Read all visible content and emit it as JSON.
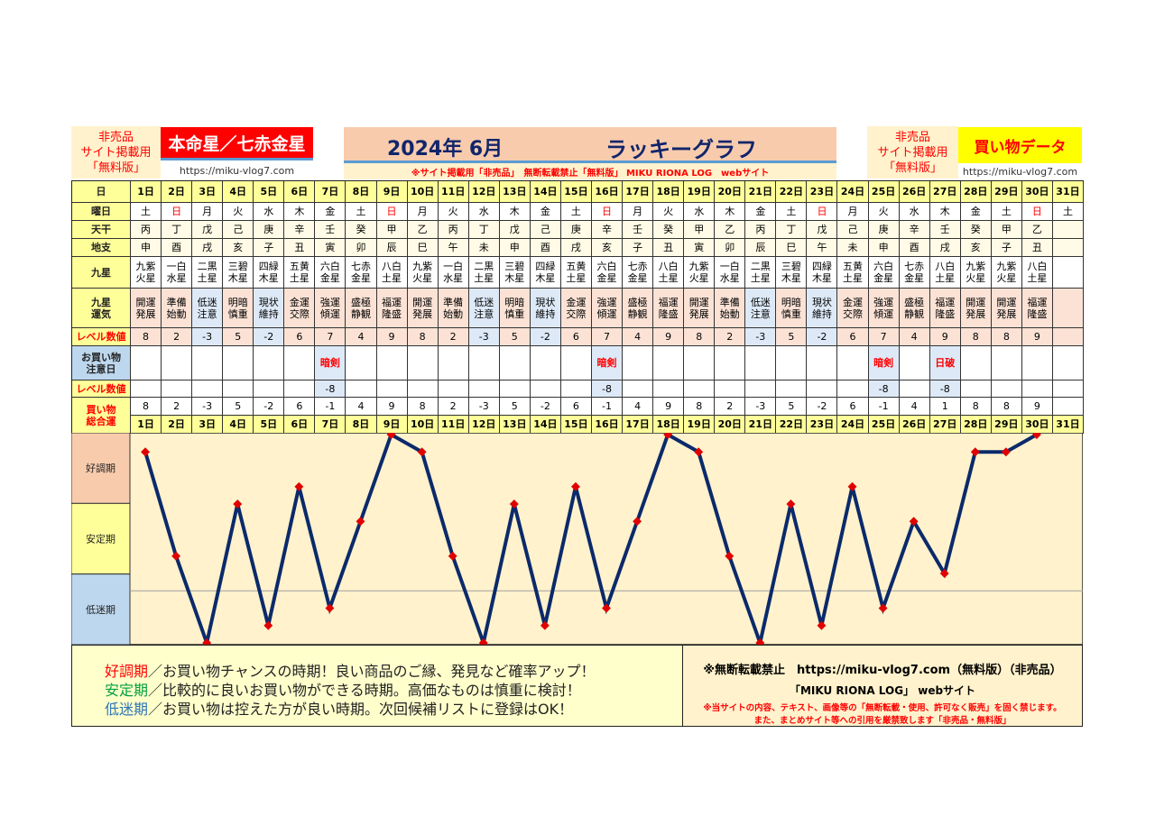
{
  "header": {
    "nonsale_left": [
      "非売品",
      "サイト掲載用",
      "「無料版」"
    ],
    "honmei_title": "本命星／七赤金星",
    "url_left": "https://miku-vlog7.com",
    "month_title": "2024年 6月",
    "graph_title": "ラッキーグラフ",
    "notice": "※サイト掲載用「非売品」　無断転載禁止「無料版」 MIKU RIONA LOG　webサイト",
    "nonsale_right": [
      "非売品",
      "サイト掲載用",
      "「無料版」"
    ],
    "data_title": "買い物データ",
    "url_right": "https://miku-vlog7.com"
  },
  "row_labels": {
    "day": "日",
    "weekday": "曜日",
    "tenkan": "天干",
    "chishi": "地支",
    "kyusei": "九星",
    "unki": "九星\n運気",
    "level": "レベル数値",
    "caution": "お買い物\n注意日",
    "caution_level": "レベル数値",
    "total": "買い物\n総合運"
  },
  "days": [
    "1日",
    "2日",
    "3日",
    "4日",
    "5日",
    "6日",
    "7日",
    "8日",
    "9日",
    "10日",
    "11日",
    "12日",
    "13日",
    "14日",
    "15日",
    "16日",
    "17日",
    "18日",
    "19日",
    "20日",
    "21日",
    "22日",
    "23日",
    "24日",
    "25日",
    "26日",
    "27日",
    "28日",
    "29日",
    "30日",
    "31日"
  ],
  "weekdays": [
    "土",
    "日",
    "月",
    "火",
    "水",
    "木",
    "金",
    "土",
    "日",
    "月",
    "火",
    "水",
    "木",
    "金",
    "土",
    "日",
    "月",
    "火",
    "水",
    "木",
    "金",
    "土",
    "日",
    "月",
    "火",
    "水",
    "木",
    "金",
    "土",
    "日",
    "土"
  ],
  "tenkan": [
    "丙",
    "丁",
    "戊",
    "己",
    "庚",
    "辛",
    "壬",
    "癸",
    "甲",
    "乙",
    "丙",
    "丁",
    "戊",
    "己",
    "庚",
    "辛",
    "壬",
    "癸",
    "甲",
    "乙",
    "丙",
    "丁",
    "戊",
    "己",
    "庚",
    "辛",
    "壬",
    "癸",
    "甲",
    "乙",
    ""
  ],
  "chishi": [
    "申",
    "酉",
    "戌",
    "亥",
    "子",
    "丑",
    "寅",
    "卯",
    "辰",
    "巳",
    "午",
    "未",
    "申",
    "酉",
    "戌",
    "亥",
    "子",
    "丑",
    "寅",
    "卯",
    "辰",
    "巳",
    "午",
    "未",
    "申",
    "酉",
    "戌",
    "亥",
    "子",
    "丑",
    ""
  ],
  "kyusei": [
    "九紫\n火星",
    "一白\n水星",
    "二黒\n土星",
    "三碧\n木星",
    "四緑\n木星",
    "五黄\n土星",
    "六白\n金星",
    "七赤\n金星",
    "八白\n土星",
    "九紫\n火星",
    "一白\n水星",
    "二黒\n土星",
    "三碧\n木星",
    "四緑\n木星",
    "五黄\n土星",
    "六白\n金星",
    "七赤\n金星",
    "八白\n土星",
    "九紫\n火星",
    "一白\n水星",
    "二黒\n土星",
    "三碧\n木星",
    "四緑\n木星",
    "五黄\n土星",
    "六白\n金星",
    "七赤\n金星",
    "八白\n土星",
    "九紫\n火星",
    "九紫\n火星",
    "八白\n土星",
    ""
  ],
  "unki": [
    "開運\n発展",
    "準備\n始動",
    "低迷\n注意",
    "明暗\n慎重",
    "現状\n維持",
    "金運\n交際",
    "強運\n傾運",
    "盛極\n静観",
    "福運\n隆盛",
    "開運\n発展",
    "準備\n始動",
    "低迷\n注意",
    "明暗\n慎重",
    "現状\n維持",
    "金運\n交際",
    "強運\n傾運",
    "盛極\n静観",
    "福運\n隆盛",
    "開運\n発展",
    "準備\n始動",
    "低迷\n注意",
    "明暗\n慎重",
    "現状\n維持",
    "金運\n交際",
    "強運\n傾運",
    "盛極\n静観",
    "福運\n隆盛",
    "開運\n発展",
    "開運\n発展",
    "福運\n隆盛",
    ""
  ],
  "levels": [
    "8",
    "2",
    "-3",
    "5",
    "-2",
    "6",
    "7",
    "4",
    "9",
    "8",
    "2",
    "-3",
    "5",
    "-2",
    "6",
    "7",
    "4",
    "9",
    "8",
    "2",
    "-3",
    "5",
    "-2",
    "6",
    "7",
    "4",
    "9",
    "8",
    "8",
    "9",
    ""
  ],
  "caution": [
    "",
    "",
    "",
    "",
    "",
    "",
    "暗剣",
    "",
    "",
    "",
    "",
    "",
    "",
    "",
    "",
    "暗剣",
    "",
    "",
    "",
    "",
    "",
    "",
    "",
    "",
    "暗剣",
    "",
    "日破",
    "",
    "",
    "",
    ""
  ],
  "caution_levels": [
    "",
    "",
    "",
    "",
    "",
    "",
    "-8",
    "",
    "",
    "",
    "",
    "",
    "",
    "",
    "",
    "-8",
    "",
    "",
    "",
    "",
    "",
    "",
    "",
    "",
    "-8",
    "",
    "-8",
    "",
    "",
    "",
    ""
  ],
  "totals": [
    "8",
    "2",
    "-3",
    "5",
    "-2",
    "6",
    "-1",
    "4",
    "9",
    "8",
    "2",
    "-3",
    "5",
    "-2",
    "6",
    "-1",
    "4",
    "9",
    "8",
    "2",
    "-3",
    "5",
    "-2",
    "6",
    "-1",
    "4",
    "1",
    "8",
    "8",
    "9",
    ""
  ],
  "colors": {
    "line": "#0b2a6b",
    "marker": "#e00000",
    "good": "#f8cbad",
    "stable": "#ffff99",
    "low": "#bdd7ee",
    "plot_bg": "#fff2cc",
    "sunday": "#ff0000"
  },
  "chart_data": {
    "type": "line",
    "x": [
      "1日",
      "2日",
      "3日",
      "4日",
      "5日",
      "6日",
      "7日",
      "8日",
      "9日",
      "10日",
      "11日",
      "12日",
      "13日",
      "14日",
      "15日",
      "16日",
      "17日",
      "18日",
      "19日",
      "20日",
      "21日",
      "22日",
      "23日",
      "24日",
      "25日",
      "26日",
      "27日",
      "28日",
      "29日",
      "30日"
    ],
    "values": [
      8,
      2,
      -3,
      5,
      -2,
      6,
      -1,
      4,
      9,
      8,
      2,
      -3,
      5,
      -2,
      6,
      -1,
      4,
      9,
      8,
      2,
      -3,
      5,
      -2,
      6,
      -1,
      4,
      1,
      8,
      8,
      9
    ],
    "ylim": [
      -3,
      9
    ],
    "zero_line": true,
    "bands": [
      "好調期",
      "安定期",
      "低迷期"
    ]
  },
  "legend": {
    "good_term": "好調期",
    "good_text": "／お買い物チャンスの時期！良い商品のご縁、発見など確率アップ！",
    "stable_term": "安定期",
    "stable_text": "／比較的に良いお買い物ができる時期。高価なものは慎重に検討！",
    "low_term": "低迷期",
    "low_text": "／お買い物は控えた方が良い時期。次回候補リストに登録はOK！"
  },
  "copyright": {
    "line1": "※無断転載禁止　https://miku-vlog7.com（無料版）（非売品）",
    "line2": "「MIKU RIONA LOG」 webサイト",
    "line3": "※当サイトの内容、テキスト、画像等の「無断転載・使用、許可なく販売」を固く禁じます。",
    "line4": "また、まとめサイト等への引用を厳禁致します「非売品・無料版」"
  }
}
